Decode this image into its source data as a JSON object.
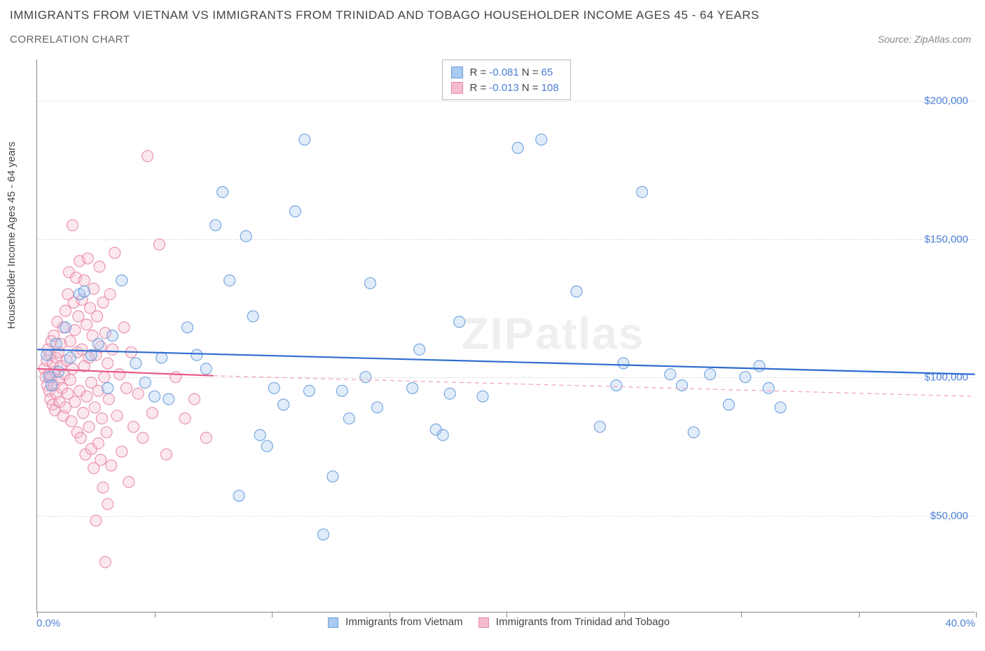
{
  "title": "IMMIGRANTS FROM VIETNAM VS IMMIGRANTS FROM TRINIDAD AND TOBAGO HOUSEHOLDER INCOME AGES 45 - 64 YEARS",
  "subtitle": "CORRELATION CHART",
  "source": "Source: ZipAtlas.com",
  "ylabel": "Householder Income Ages 45 - 64 years",
  "watermark": "ZIPatlas",
  "chart": {
    "type": "scatter",
    "xlim": [
      0,
      40
    ],
    "ylim": [
      15000,
      215000
    ],
    "x_tick_positions": [
      0,
      5,
      10,
      15,
      20,
      25,
      30,
      35,
      40
    ],
    "x_tick_labels": {
      "0": "0.0%",
      "40": "40.0%"
    },
    "y_ticks": [
      50000,
      100000,
      150000,
      200000
    ],
    "y_tick_labels": [
      "$50,000",
      "$100,000",
      "$150,000",
      "$200,000"
    ],
    "background_color": "#ffffff",
    "grid_color": "#dddddd",
    "axis_color": "#888888",
    "tick_label_color": "#4a7fd6",
    "marker_radius": 8,
    "marker_opacity": 0.35
  },
  "series": [
    {
      "name": "Immigrants from Vietnam",
      "color_fill": "#a9c9f0",
      "color_stroke": "#6a9edc",
      "r_label": "R = ",
      "r_value": "-0.081",
      "n_label": "   N = ",
      "n_value": "  65",
      "regression": {
        "x1": 0,
        "y1": 110000,
        "x2": 40,
        "y2": 101000,
        "stroke": "#2e6cd0",
        "stroke_width": 2.2,
        "dash": "none"
      },
      "ext_regression": null,
      "points": [
        [
          0.4,
          108000
        ],
        [
          0.5,
          100000
        ],
        [
          0.6,
          97000
        ],
        [
          0.8,
          112000
        ],
        [
          0.9,
          102000
        ],
        [
          1.2,
          118000
        ],
        [
          1.4,
          107000
        ],
        [
          1.8,
          130000
        ],
        [
          2.0,
          131000
        ],
        [
          2.3,
          108000
        ],
        [
          2.6,
          112000
        ],
        [
          3.0,
          96000
        ],
        [
          3.2,
          115000
        ],
        [
          3.6,
          135000
        ],
        [
          4.2,
          105000
        ],
        [
          4.6,
          98000
        ],
        [
          5.0,
          93000
        ],
        [
          5.3,
          107000
        ],
        [
          5.6,
          92000
        ],
        [
          6.4,
          118000
        ],
        [
          6.8,
          108000
        ],
        [
          7.2,
          103000
        ],
        [
          7.6,
          155000
        ],
        [
          7.9,
          167000
        ],
        [
          8.2,
          135000
        ],
        [
          8.6,
          57000
        ],
        [
          8.9,
          151000
        ],
        [
          9.2,
          122000
        ],
        [
          9.5,
          79000
        ],
        [
          9.8,
          75000
        ],
        [
          10.1,
          96000
        ],
        [
          10.5,
          90000
        ],
        [
          11.0,
          160000
        ],
        [
          11.4,
          186000
        ],
        [
          11.6,
          95000
        ],
        [
          12.2,
          43000
        ],
        [
          12.6,
          64000
        ],
        [
          13.0,
          95000
        ],
        [
          13.3,
          85000
        ],
        [
          14.0,
          100000
        ],
        [
          14.2,
          134000
        ],
        [
          14.5,
          89000
        ],
        [
          16.0,
          96000
        ],
        [
          16.3,
          110000
        ],
        [
          17.0,
          81000
        ],
        [
          17.3,
          79000
        ],
        [
          17.6,
          94000
        ],
        [
          18.0,
          120000
        ],
        [
          19.0,
          93000
        ],
        [
          20.5,
          183000
        ],
        [
          21.5,
          186000
        ],
        [
          23.0,
          131000
        ],
        [
          24.0,
          82000
        ],
        [
          24.7,
          97000
        ],
        [
          25.0,
          105000
        ],
        [
          25.8,
          167000
        ],
        [
          27.0,
          101000
        ],
        [
          27.5,
          97000
        ],
        [
          28.0,
          80000
        ],
        [
          28.7,
          101000
        ],
        [
          29.5,
          90000
        ],
        [
          30.2,
          100000
        ],
        [
          30.8,
          104000
        ],
        [
          31.2,
          96000
        ],
        [
          31.7,
          89000
        ]
      ]
    },
    {
      "name": "Immigrants from Trinidad and Tobago",
      "color_fill": "#f4bccd",
      "color_stroke": "#e88aa8",
      "r_label": "R = ",
      "r_value": "-0.013",
      "n_label": "   N = ",
      "n_value": "108",
      "regression": {
        "x1": 0,
        "y1": 103000,
        "x2": 7.5,
        "y2": 100500,
        "stroke": "#e65a8a",
        "stroke_width": 2.2,
        "dash": "none"
      },
      "ext_regression": {
        "x1": 7.5,
        "y1": 100500,
        "x2": 40,
        "y2": 93000,
        "stroke": "#f0a0b8",
        "stroke_width": 1.2,
        "dash": "6,5"
      },
      "points": [
        [
          0.3,
          103000
        ],
        [
          0.35,
          100000
        ],
        [
          0.4,
          106000
        ],
        [
          0.42,
          97000
        ],
        [
          0.45,
          110000
        ],
        [
          0.5,
          101000
        ],
        [
          0.5,
          95000
        ],
        [
          0.55,
          108000
        ],
        [
          0.55,
          92000
        ],
        [
          0.6,
          100000
        ],
        [
          0.6,
          113000
        ],
        [
          0.65,
          105000
        ],
        [
          0.65,
          90000
        ],
        [
          0.7,
          97000
        ],
        [
          0.7,
          115000
        ],
        [
          0.75,
          102000
        ],
        [
          0.75,
          88000
        ],
        [
          0.8,
          107000
        ],
        [
          0.8,
          94000
        ],
        [
          0.85,
          120000
        ],
        [
          0.9,
          99000
        ],
        [
          0.9,
          109000
        ],
        [
          0.95,
          91000
        ],
        [
          1.0,
          104000
        ],
        [
          1.0,
          112000
        ],
        [
          1.05,
          96000
        ],
        [
          1.1,
          86000
        ],
        [
          1.1,
          118000
        ],
        [
          1.15,
          101000
        ],
        [
          1.2,
          124000
        ],
        [
          1.2,
          89000
        ],
        [
          1.25,
          106000
        ],
        [
          1.3,
          94000
        ],
        [
          1.3,
          130000
        ],
        [
          1.35,
          138000
        ],
        [
          1.4,
          99000
        ],
        [
          1.4,
          113000
        ],
        [
          1.45,
          84000
        ],
        [
          1.5,
          155000
        ],
        [
          1.5,
          103000
        ],
        [
          1.55,
          127000
        ],
        [
          1.6,
          91000
        ],
        [
          1.6,
          117000
        ],
        [
          1.65,
          136000
        ],
        [
          1.7,
          80000
        ],
        [
          1.7,
          109000
        ],
        [
          1.75,
          122000
        ],
        [
          1.8,
          95000
        ],
        [
          1.8,
          142000
        ],
        [
          1.85,
          78000
        ],
        [
          1.9,
          110000
        ],
        [
          1.9,
          128000
        ],
        [
          1.95,
          87000
        ],
        [
          2.0,
          104000
        ],
        [
          2.0,
          135000
        ],
        [
          2.05,
          72000
        ],
        [
          2.1,
          119000
        ],
        [
          2.1,
          93000
        ],
        [
          2.15,
          143000
        ],
        [
          2.2,
          82000
        ],
        [
          2.2,
          107000
        ],
        [
          2.25,
          125000
        ],
        [
          2.3,
          74000
        ],
        [
          2.3,
          98000
        ],
        [
          2.35,
          115000
        ],
        [
          2.4,
          67000
        ],
        [
          2.4,
          132000
        ],
        [
          2.45,
          89000
        ],
        [
          2.5,
          48000
        ],
        [
          2.5,
          108000
        ],
        [
          2.55,
          122000
        ],
        [
          2.6,
          76000
        ],
        [
          2.6,
          95000
        ],
        [
          2.65,
          140000
        ],
        [
          2.7,
          70000
        ],
        [
          2.7,
          111000
        ],
        [
          2.75,
          85000
        ],
        [
          2.8,
          127000
        ],
        [
          2.8,
          60000
        ],
        [
          2.85,
          100000
        ],
        [
          2.9,
          33000
        ],
        [
          2.9,
          116000
        ],
        [
          2.95,
          80000
        ],
        [
          3.0,
          54000
        ],
        [
          3.0,
          105000
        ],
        [
          3.05,
          92000
        ],
        [
          3.1,
          130000
        ],
        [
          3.15,
          68000
        ],
        [
          3.2,
          110000
        ],
        [
          3.3,
          145000
        ],
        [
          3.4,
          86000
        ],
        [
          3.5,
          101000
        ],
        [
          3.6,
          73000
        ],
        [
          3.7,
          118000
        ],
        [
          3.8,
          96000
        ],
        [
          3.9,
          62000
        ],
        [
          4.0,
          109000
        ],
        [
          4.1,
          82000
        ],
        [
          4.3,
          94000
        ],
        [
          4.5,
          78000
        ],
        [
          4.7,
          180000
        ],
        [
          4.9,
          87000
        ],
        [
          5.2,
          148000
        ],
        [
          5.5,
          72000
        ],
        [
          5.9,
          100000
        ],
        [
          6.3,
          85000
        ],
        [
          6.7,
          92000
        ],
        [
          7.2,
          78000
        ]
      ]
    }
  ]
}
